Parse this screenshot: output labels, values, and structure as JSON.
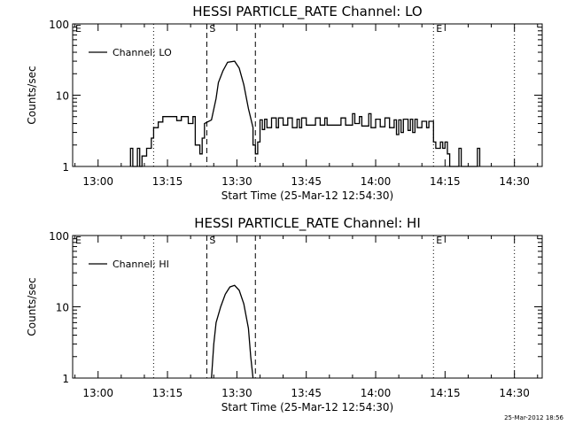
{
  "footer_stamp": "25-Mar-2012 18:56",
  "chart_data": [
    {
      "type": "line",
      "title": "HESSI PARTICLE_RATE Channel: LO",
      "xlabel": "Start Time (25-Mar-12 12:54:30)",
      "ylabel": "Counts/sec",
      "yscale": "log",
      "ylim": [
        1,
        100
      ],
      "ytick_labels": [
        "1",
        "10",
        "100"
      ],
      "x_unit": "clock time (HH:MM)",
      "xlim": [
        "12:54:30",
        "14:36:00"
      ],
      "xtick_labels": [
        "13:00",
        "13:15",
        "13:30",
        "13:45",
        "14:00",
        "14:15",
        "14:30"
      ],
      "legend": {
        "position": "top-left",
        "entries": [
          "Channel: LO"
        ]
      },
      "markers": [
        {
          "label": "E",
          "time": "12:54:30",
          "style": "dotted"
        },
        {
          "label": "",
          "time": "13:12:00",
          "style": "dotted"
        },
        {
          "label": "S",
          "time": "13:23:30",
          "style": "dashed"
        },
        {
          "label": "",
          "time": "13:34:00",
          "style": "dashed"
        },
        {
          "label": "E",
          "time": "14:12:30",
          "style": "dotted"
        },
        {
          "label": "",
          "time": "14:30:00",
          "style": "dotted"
        }
      ],
      "series": [
        {
          "name": "Channel: LO",
          "points": [
            [
              "13:07:00",
              1
            ],
            [
              "13:07:00",
              1.8
            ],
            [
              "13:07:30",
              1.8
            ],
            [
              "13:07:30",
              1
            ],
            [
              "13:08:30",
              1
            ],
            [
              "13:08:30",
              1.8
            ],
            [
              "13:09:00",
              1.8
            ],
            [
              "13:09:00",
              1
            ],
            [
              "13:09:30",
              1
            ],
            [
              "13:09:30",
              1.4
            ],
            [
              "13:10:30",
              1.4
            ],
            [
              "13:10:30",
              1.8
            ],
            [
              "13:11:30",
              1.8
            ],
            [
              "13:11:30",
              2.5
            ],
            [
              "13:12:00",
              2.5
            ],
            [
              "13:12:00",
              3.5
            ],
            [
              "13:13:00",
              3.5
            ],
            [
              "13:13:00",
              4.2
            ],
            [
              "13:14:00",
              4.2
            ],
            [
              "13:14:00",
              5
            ],
            [
              "13:17:00",
              5
            ],
            [
              "13:17:00",
              4.4
            ],
            [
              "13:18:00",
              4.4
            ],
            [
              "13:18:00",
              5
            ],
            [
              "13:19:30",
              5
            ],
            [
              "13:19:30",
              4
            ],
            [
              "13:20:30",
              4
            ],
            [
              "13:20:30",
              5
            ],
            [
              "13:21:00",
              5
            ],
            [
              "13:21:00",
              2
            ],
            [
              "13:22:00",
              2
            ],
            [
              "13:22:00",
              1.5
            ],
            [
              "13:22:30",
              1.5
            ],
            [
              "13:22:30",
              2.5
            ],
            [
              "13:23:00",
              2.5
            ],
            [
              "13:23:00",
              4
            ],
            [
              "13:24:30",
              4.5
            ],
            [
              "13:25:30",
              9
            ],
            [
              "13:26:00",
              15
            ],
            [
              "13:27:00",
              22
            ],
            [
              "13:28:00",
              29
            ],
            [
              "13:29:30",
              30
            ],
            [
              "13:30:30",
              24
            ],
            [
              "13:31:30",
              14
            ],
            [
              "13:32:30",
              6.5
            ],
            [
              "13:33:30",
              3.5
            ],
            [
              "13:33:30",
              2
            ],
            [
              "13:34:00",
              2
            ],
            [
              "13:34:00",
              1.5
            ],
            [
              "13:34:30",
              1.5
            ],
            [
              "13:34:30",
              2.2
            ],
            [
              "13:35:00",
              2.2
            ],
            [
              "13:35:00",
              4.5
            ],
            [
              "13:35:30",
              4.5
            ],
            [
              "13:35:30",
              3.3
            ],
            [
              "13:36:00",
              3.3
            ],
            [
              "13:36:00",
              4.6
            ],
            [
              "13:36:30",
              4.6
            ],
            [
              "13:36:30",
              3.5
            ],
            [
              "13:37:30",
              3.5
            ],
            [
              "13:37:30",
              4.8
            ],
            [
              "13:38:30",
              4.8
            ],
            [
              "13:38:30",
              3.5
            ],
            [
              "13:39:00",
              3.5
            ],
            [
              "13:39:00",
              4.8
            ],
            [
              "13:40:00",
              4.8
            ],
            [
              "13:40:00",
              3.8
            ],
            [
              "13:41:00",
              3.8
            ],
            [
              "13:41:00",
              4.8
            ],
            [
              "13:42:00",
              4.8
            ],
            [
              "13:42:00",
              3.5
            ],
            [
              "13:43:00",
              3.5
            ],
            [
              "13:43:00",
              4.6
            ],
            [
              "13:43:30",
              4.6
            ],
            [
              "13:43:30",
              3.5
            ],
            [
              "13:44:00",
              3.5
            ],
            [
              "13:44:00",
              4.8
            ],
            [
              "13:45:00",
              4.8
            ],
            [
              "13:45:00",
              3.8
            ],
            [
              "13:47:00",
              3.8
            ],
            [
              "13:47:00",
              4.8
            ],
            [
              "13:48:00",
              4.8
            ],
            [
              "13:48:00",
              3.8
            ],
            [
              "13:49:00",
              3.8
            ],
            [
              "13:49:00",
              4.8
            ],
            [
              "13:49:30",
              4.8
            ],
            [
              "13:49:30",
              3.8
            ],
            [
              "13:52:30",
              3.8
            ],
            [
              "13:52:30",
              4.8
            ],
            [
              "13:53:30",
              4.8
            ],
            [
              "13:53:30",
              3.8
            ],
            [
              "13:55:00",
              3.8
            ],
            [
              "13:55:00",
              5.5
            ],
            [
              "13:55:30",
              5.5
            ],
            [
              "13:55:30",
              4
            ],
            [
              "13:56:30",
              4
            ],
            [
              "13:56:30",
              5
            ],
            [
              "13:57:00",
              5
            ],
            [
              "13:57:00",
              3.7
            ],
            [
              "13:58:30",
              3.7
            ],
            [
              "13:58:30",
              5.5
            ],
            [
              "13:59:00",
              5.5
            ],
            [
              "13:59:00",
              3.5
            ],
            [
              "14:00:00",
              3.5
            ],
            [
              "14:00:00",
              4.6
            ],
            [
              "14:01:00",
              4.6
            ],
            [
              "14:01:00",
              3.6
            ],
            [
              "14:02:00",
              3.6
            ],
            [
              "14:02:00",
              4.8
            ],
            [
              "14:03:00",
              4.8
            ],
            [
              "14:03:00",
              3.5
            ],
            [
              "14:04:00",
              3.5
            ],
            [
              "14:04:00",
              4.5
            ],
            [
              "14:04:30",
              4.5
            ],
            [
              "14:04:30",
              2.8
            ],
            [
              "14:05:00",
              2.8
            ],
            [
              "14:05:00",
              4.5
            ],
            [
              "14:05:30",
              4.5
            ],
            [
              "14:05:30",
              3
            ],
            [
              "14:06:00",
              3
            ],
            [
              "14:06:00",
              4.6
            ],
            [
              "14:07:00",
              4.6
            ],
            [
              "14:07:00",
              3.2
            ],
            [
              "14:07:30",
              3.2
            ],
            [
              "14:07:30",
              4.6
            ],
            [
              "14:08:00",
              4.6
            ],
            [
              "14:08:00",
              3
            ],
            [
              "14:08:30",
              3
            ],
            [
              "14:08:30",
              4.6
            ],
            [
              "14:09:00",
              4.6
            ],
            [
              "14:09:00",
              3.5
            ],
            [
              "14:10:00",
              3.5
            ],
            [
              "14:10:00",
              4.3
            ],
            [
              "14:11:00",
              4.3
            ],
            [
              "14:11:00",
              3.5
            ],
            [
              "14:11:30",
              3.5
            ],
            [
              "14:11:30",
              4.3
            ],
            [
              "14:12:30",
              4.3
            ],
            [
              "14:12:30",
              2.2
            ],
            [
              "14:13:00",
              2.2
            ],
            [
              "14:13:00",
              1.8
            ],
            [
              "14:14:00",
              1.8
            ],
            [
              "14:14:00",
              2.2
            ],
            [
              "14:14:30",
              2.2
            ],
            [
              "14:14:30",
              1.8
            ],
            [
              "14:15:00",
              1.8
            ],
            [
              "14:15:00",
              2.2
            ],
            [
              "14:15:30",
              2.2
            ],
            [
              "14:15:30",
              1.5
            ],
            [
              "14:16:00",
              1.5
            ],
            [
              "14:16:00",
              1
            ],
            [
              "14:18:00",
              1
            ],
            [
              "14:18:00",
              1.8
            ],
            [
              "14:18:30",
              1.8
            ],
            [
              "14:18:30",
              1
            ],
            [
              "14:22:00",
              1
            ],
            [
              "14:22:00",
              1.8
            ],
            [
              "14:22:30",
              1.8
            ],
            [
              "14:22:30",
              1
            ]
          ]
        }
      ]
    },
    {
      "type": "line",
      "title": "HESSI PARTICLE_RATE Channel: HI",
      "xlabel": "Start Time (25-Mar-12 12:54:30)",
      "ylabel": "Counts/sec",
      "yscale": "log",
      "ylim": [
        1,
        100
      ],
      "ytick_labels": [
        "1",
        "10",
        "100"
      ],
      "x_unit": "clock time (HH:MM)",
      "xlim": [
        "12:54:30",
        "14:36:00"
      ],
      "xtick_labels": [
        "13:00",
        "13:15",
        "13:30",
        "13:45",
        "14:00",
        "14:15",
        "14:30"
      ],
      "legend": {
        "position": "top-left",
        "entries": [
          "Channel: HI"
        ]
      },
      "markers": [
        {
          "label": "E",
          "time": "12:54:30",
          "style": "dotted"
        },
        {
          "label": "",
          "time": "13:12:00",
          "style": "dotted"
        },
        {
          "label": "S",
          "time": "13:23:30",
          "style": "dashed"
        },
        {
          "label": "",
          "time": "13:34:00",
          "style": "dashed"
        },
        {
          "label": "E",
          "time": "14:12:30",
          "style": "dotted"
        },
        {
          "label": "",
          "time": "14:30:00",
          "style": "dotted"
        }
      ],
      "series": [
        {
          "name": "Channel: HI",
          "points": [
            [
              "13:24:30",
              1
            ],
            [
              "13:25:00",
              3
            ],
            [
              "13:25:30",
              6
            ],
            [
              "13:26:30",
              10
            ],
            [
              "13:27:30",
              15
            ],
            [
              "13:28:30",
              19
            ],
            [
              "13:29:30",
              20
            ],
            [
              "13:30:30",
              17
            ],
            [
              "13:31:30",
              11
            ],
            [
              "13:32:30",
              5
            ],
            [
              "13:33:00",
              2
            ],
            [
              "13:33:30",
              1
            ]
          ]
        }
      ]
    }
  ]
}
